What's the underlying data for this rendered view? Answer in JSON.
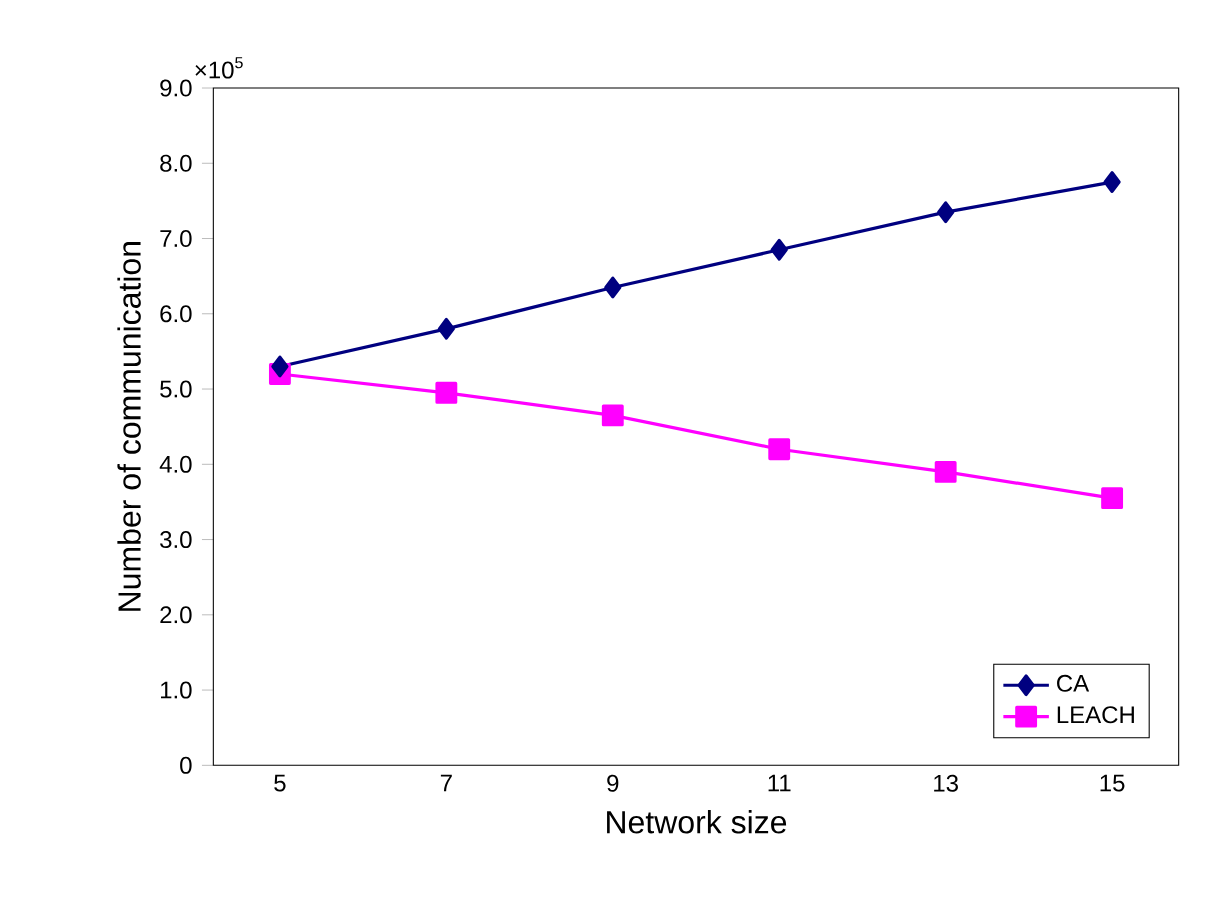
{
  "chart_data": {
    "type": "line",
    "xlabel": "Network size",
    "ylabel": "Number of communication",
    "annotations": [
      "×10$^{5}$"
    ],
    "categories": [
      "5",
      "7",
      "9",
      "11",
      "13",
      "15"
    ],
    "ylim": [
      0,
      9
    ],
    "yticks": [
      {
        "value": 0,
        "label": "0"
      },
      {
        "value": 1,
        "label": "1.0"
      },
      {
        "value": 2,
        "label": "2.0"
      },
      {
        "value": 3,
        "label": "3.0"
      },
      {
        "value": 4,
        "label": "4.0"
      },
      {
        "value": 5,
        "label": "5.0"
      },
      {
        "value": 6,
        "label": "6.0"
      },
      {
        "value": 7,
        "label": "7.0"
      },
      {
        "value": 8,
        "label": "8.0"
      },
      {
        "value": 9,
        "label": "9.0"
      }
    ],
    "legend": "bottom right",
    "grid": false,
    "series": [
      {
        "name": "CA",
        "color": "#000080",
        "marker": "diamond",
        "values": [
          5.3,
          5.8,
          6.35,
          6.85,
          7.35,
          7.75
        ]
      },
      {
        "name": "LEACH",
        "color": "#ff00ff",
        "marker": "square",
        "values": [
          5.2,
          4.95,
          4.65,
          4.2,
          3.9,
          3.55
        ]
      }
    ]
  }
}
